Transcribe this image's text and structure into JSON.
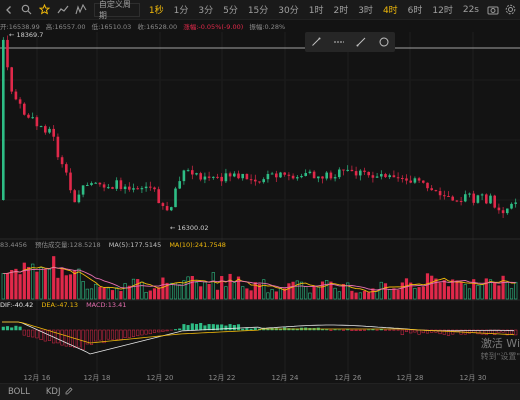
{
  "toolbar": {
    "chart_type_label": "自定义周期",
    "intervals": [
      {
        "label": "1秒",
        "active": true
      },
      {
        "label": "1分",
        "active": false
      },
      {
        "label": "3分",
        "active": false
      },
      {
        "label": "5分",
        "active": false
      },
      {
        "label": "15分",
        "active": false
      },
      {
        "label": "30分",
        "active": false
      },
      {
        "label": "1时",
        "active": false
      },
      {
        "label": "2时",
        "active": false
      },
      {
        "label": "3时",
        "active": false
      },
      {
        "label": "4时",
        "active": true
      },
      {
        "label": "6时",
        "active": false
      },
      {
        "label": "12时",
        "active": false
      }
    ],
    "extra_interval": "22s"
  },
  "ohlc": {
    "open": "开:16538.99",
    "high": "高:16557.00",
    "low": "低:16510.03",
    "close": "收:16528.00",
    "change": "涨幅:-0.05%(-9.00)",
    "amplitude": "振幅:0.28%"
  },
  "price_annotations": {
    "high_label": "← 18369.7",
    "low_label": "← 16300.02"
  },
  "volume_indicator": {
    "value": "83.4456",
    "label": "预估成交量:",
    "estimate": "128.5218",
    "ma5": "MA(5):177.5145",
    "ma10": "MA(10):241.7548"
  },
  "macd_indicator": {
    "dif": "DIF:-40.42",
    "dea": "DEA:-47.13",
    "macd": "MACD:13.41"
  },
  "x_axis_labels": [
    "12月 16",
    "12月 18",
    "12月 20",
    "12月 22",
    "12月 24",
    "12月 26",
    "12月 28",
    "12月 30"
  ],
  "bottom_tabs": {
    "boll": "BOLL",
    "kdj": "KDJ"
  },
  "watermark": {
    "line1": "激活 Wi",
    "line2": "转到\"设置\""
  },
  "colors": {
    "up": "#2ebd85",
    "down": "#e0294a",
    "accent": "#f0b90b",
    "ma_yellow": "#f0b90b",
    "ma_pink": "#e56fb0",
    "dif_line": "#e8e8e8",
    "dea_line": "#f0b90b"
  },
  "icons": [
    "chevron-left-icon",
    "search-icon",
    "star-icon",
    "chart-icon",
    "indicator-icon",
    "camera-icon",
    "settings-icon",
    "draw-line-icon",
    "ray-icon",
    "extend-line-icon",
    "circle-icon",
    "edit-icon"
  ]
}
